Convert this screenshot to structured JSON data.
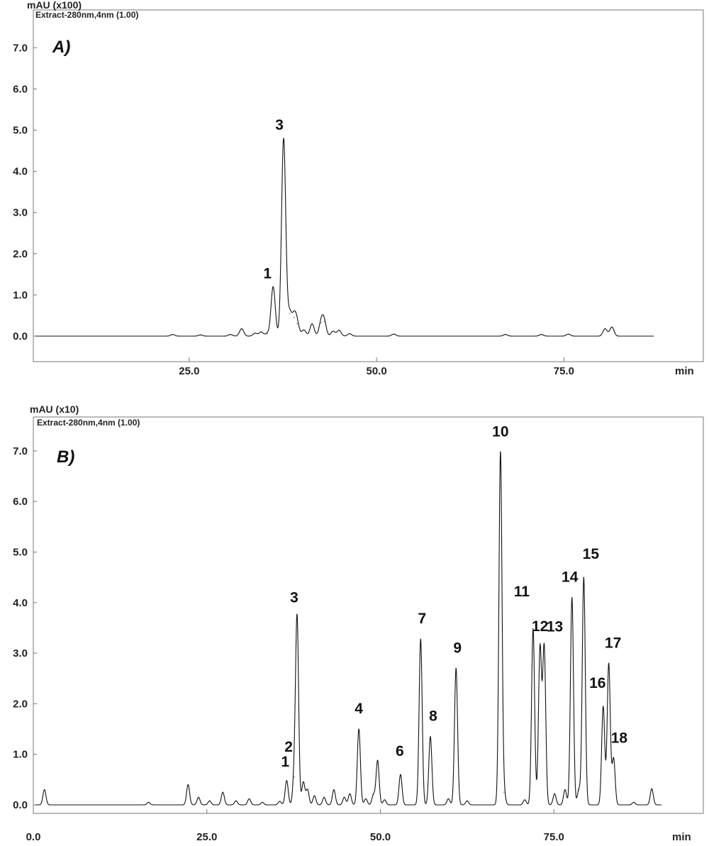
{
  "chart_data": [
    {
      "type": "line",
      "panel_label": "A)",
      "unit_label": "mAU (x100)",
      "subtitle": "Extract-280nm,4nm (1.00)",
      "xlabel": "min",
      "xlim": [
        0,
        92
      ],
      "ylim": [
        -0.6,
        7.6
      ],
      "x_ticks": [
        25.0,
        50.0,
        75.0
      ],
      "x_tick_labels": [
        "25.0",
        "50.0",
        "75.0"
      ],
      "y_ticks": [
        0.0,
        1.0,
        2.0,
        3.0,
        4.0,
        5.0,
        6.0,
        7.0
      ],
      "y_tick_labels": [
        "0.0",
        "1.0",
        "2.0",
        "3.0",
        "4.0",
        "5.0",
        "6.0",
        "7.0"
      ],
      "trace_end": 87.0,
      "baseline": 0.0,
      "peaks": [
        {
          "x": 22.8,
          "y": 0.04
        },
        {
          "x": 26.5,
          "y": 0.03
        },
        {
          "x": 30.5,
          "y": 0.04
        },
        {
          "x": 32.0,
          "y": 0.18
        },
        {
          "x": 33.8,
          "y": 0.07
        },
        {
          "x": 34.6,
          "y": 0.1
        },
        {
          "x": 35.4,
          "y": 0.06
        },
        {
          "x": 36.2,
          "y": 1.2,
          "label": "1"
        },
        {
          "x": 37.6,
          "y": 4.8,
          "label": "3"
        },
        {
          "x": 38.4,
          "y": 0.55
        },
        {
          "x": 39.0,
          "y": 0.45
        },
        {
          "x": 39.4,
          "y": 0.3
        },
        {
          "x": 40.3,
          "y": 0.15
        },
        {
          "x": 41.4,
          "y": 0.3
        },
        {
          "x": 42.6,
          "y": 0.32
        },
        {
          "x": 43.0,
          "y": 0.35
        },
        {
          "x": 44.2,
          "y": 0.12
        },
        {
          "x": 45.0,
          "y": 0.14
        },
        {
          "x": 46.4,
          "y": 0.06
        },
        {
          "x": 52.3,
          "y": 0.05
        },
        {
          "x": 67.2,
          "y": 0.04
        },
        {
          "x": 72.0,
          "y": 0.04
        },
        {
          "x": 75.6,
          "y": 0.05
        },
        {
          "x": 80.5,
          "y": 0.18
        },
        {
          "x": 81.4,
          "y": 0.22
        }
      ]
    },
    {
      "type": "line",
      "panel_label": "B)",
      "unit_label": "mAU (x10)",
      "subtitle": "Extract-280nm,4nm (1.00)",
      "xlabel": "min",
      "xlim": [
        0,
        92
      ],
      "ylim": [
        -0.15,
        7.4
      ],
      "x_ticks": [
        0.0,
        25.0,
        50.0,
        75.0
      ],
      "x_tick_labels": [
        "0.0",
        "25.0",
        "50.0",
        "75.0"
      ],
      "y_ticks": [
        0.0,
        1.0,
        2.0,
        3.0,
        4.0,
        5.0,
        6.0,
        7.0
      ],
      "y_tick_labels": [
        "0.0",
        "1.0",
        "2.0",
        "3.0",
        "4.0",
        "5.0",
        "6.0",
        "7.0"
      ],
      "trace_end": 90.5,
      "baseline": 0.0,
      "peaks": [
        {
          "x": 1.6,
          "y": 0.3
        },
        {
          "x": 16.6,
          "y": 0.05
        },
        {
          "x": 22.3,
          "y": 0.4
        },
        {
          "x": 23.8,
          "y": 0.15
        },
        {
          "x": 25.4,
          "y": 0.08
        },
        {
          "x": 27.3,
          "y": 0.25
        },
        {
          "x": 29.2,
          "y": 0.08
        },
        {
          "x": 31.1,
          "y": 0.12
        },
        {
          "x": 33.0,
          "y": 0.05
        },
        {
          "x": 35.5,
          "y": 0.07
        },
        {
          "x": 36.5,
          "y": 0.48,
          "label": "1"
        },
        {
          "x": 37.6,
          "y": 0.55,
          "label": "2"
        },
        {
          "x": 38.0,
          "y": 3.67,
          "label": "3"
        },
        {
          "x": 38.9,
          "y": 0.45
        },
        {
          "x": 39.5,
          "y": 0.3
        },
        {
          "x": 40.5,
          "y": 0.18
        },
        {
          "x": 41.9,
          "y": 0.15
        },
        {
          "x": 43.3,
          "y": 0.3
        },
        {
          "x": 44.8,
          "y": 0.15
        },
        {
          "x": 45.6,
          "y": 0.22
        },
        {
          "x": 46.9,
          "y": 1.5,
          "label": "4"
        },
        {
          "x": 47.9,
          "y": 0.12
        },
        {
          "x": 49.0,
          "y": 0.2
        },
        {
          "x": 49.6,
          "y": 0.88
        },
        {
          "x": 50.6,
          "y": 0.1
        },
        {
          "x": 52.9,
          "y": 0.6,
          "label": "6"
        },
        {
          "x": 55.8,
          "y": 3.28,
          "label": "7"
        },
        {
          "x": 57.2,
          "y": 1.35,
          "label": "8"
        },
        {
          "x": 59.8,
          "y": 0.12
        },
        {
          "x": 60.9,
          "y": 2.7,
          "label": "9"
        },
        {
          "x": 62.5,
          "y": 0.08
        },
        {
          "x": 67.3,
          "y": 6.98,
          "label": "10"
        },
        {
          "x": 67.8,
          "y": 0.25
        },
        {
          "x": 70.8,
          "y": 0.1
        },
        {
          "x": 72.0,
          "y": 3.48,
          "label": "11"
        },
        {
          "x": 73.0,
          "y": 3.1,
          "label": "12"
        },
        {
          "x": 73.6,
          "y": 3.12,
          "label": "13"
        },
        {
          "x": 75.1,
          "y": 0.22
        },
        {
          "x": 76.6,
          "y": 0.3
        },
        {
          "x": 77.6,
          "y": 4.1,
          "label": "14"
        },
        {
          "x": 78.6,
          "y": 0.3
        },
        {
          "x": 79.3,
          "y": 4.5,
          "label": "15"
        },
        {
          "x": 82.1,
          "y": 1.95,
          "label": "16"
        },
        {
          "x": 82.9,
          "y": 2.8,
          "label": "17"
        },
        {
          "x": 83.6,
          "y": 0.92,
          "label": "18"
        },
        {
          "x": 86.5,
          "y": 0.05
        },
        {
          "x": 89.1,
          "y": 0.32
        }
      ]
    }
  ]
}
